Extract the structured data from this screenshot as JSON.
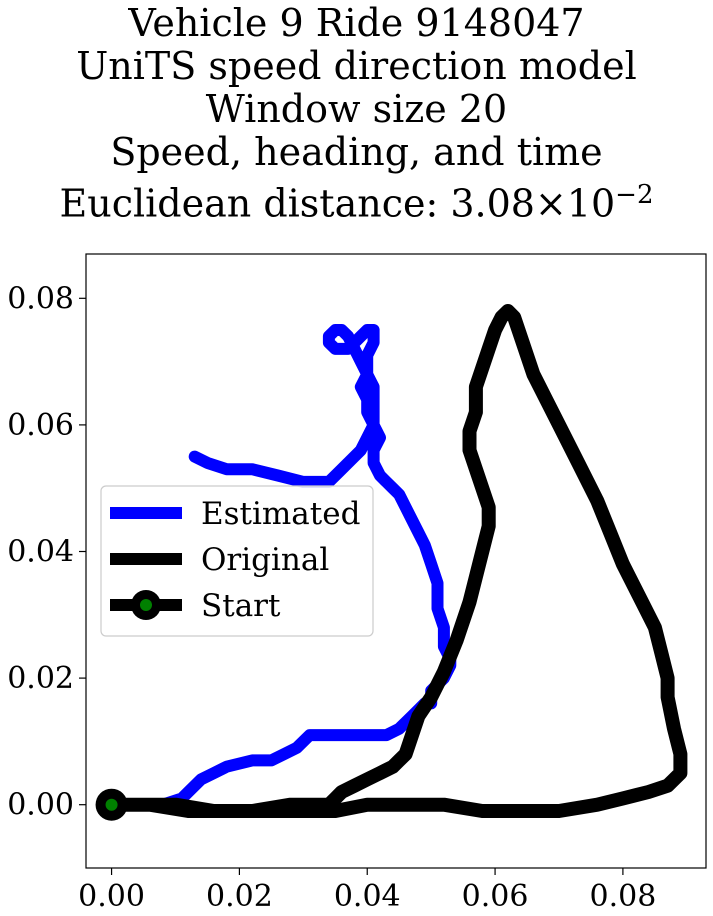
{
  "title_lines": [
    "Vehicle 9 Ride 9148047",
    "UniTS speed direction model",
    "Window size 20",
    "Speed, heading, and time"
  ],
  "title_metric": {
    "prefix": "Euclidean distance: ",
    "mantissa": "3.08",
    "times": "×",
    "base": "10",
    "exponent": "−2"
  },
  "colors": {
    "estimated": "#0000ff",
    "original": "#000000",
    "start_outer": "#000000",
    "start_inner": "#008000"
  },
  "chart_data": {
    "type": "line",
    "title": "Vehicle 9 Ride 9148047 / UniTS speed direction model / Window size 20 / Speed, heading, and time / Euclidean distance: 3.08×10^-2",
    "xlabel": "",
    "ylabel": "",
    "xlim": [
      -0.004,
      0.093
    ],
    "ylim": [
      -0.01,
      0.087
    ],
    "xticks": [
      "0.00",
      "0.02",
      "0.04",
      "0.06",
      "0.08"
    ],
    "yticks": [
      "0.00",
      "0.02",
      "0.04",
      "0.06",
      "0.08"
    ],
    "grid": false,
    "legend_position": "center-left",
    "series": [
      {
        "name": "Estimated",
        "x": [
          0.0,
          0.004,
          0.008,
          0.011,
          0.012,
          0.014,
          0.016,
          0.018,
          0.022,
          0.025,
          0.027,
          0.029,
          0.031,
          0.034,
          0.037,
          0.04,
          0.043,
          0.045,
          0.047,
          0.048,
          0.049,
          0.05,
          0.05,
          0.052,
          0.053,
          0.053,
          0.052,
          0.052,
          0.051,
          0.051,
          0.05,
          0.049,
          0.048,
          0.047,
          0.046,
          0.045,
          0.044,
          0.043,
          0.042,
          0.041,
          0.041,
          0.042,
          0.041,
          0.04,
          0.04,
          0.039,
          0.04,
          0.04,
          0.041,
          0.041,
          0.04,
          0.039,
          0.038,
          0.037,
          0.036,
          0.035,
          0.034,
          0.034,
          0.035,
          0.036,
          0.037,
          0.038,
          0.039,
          0.04,
          0.041,
          0.041,
          0.041,
          0.04,
          0.039,
          0.036,
          0.034,
          0.03,
          0.026,
          0.022,
          0.018,
          0.015,
          0.013
        ],
        "y": [
          0.0,
          0.0,
          0.0,
          0.001,
          0.002,
          0.004,
          0.005,
          0.006,
          0.007,
          0.007,
          0.008,
          0.009,
          0.011,
          0.011,
          0.011,
          0.011,
          0.011,
          0.012,
          0.014,
          0.015,
          0.016,
          0.016,
          0.018,
          0.02,
          0.022,
          0.023,
          0.025,
          0.028,
          0.031,
          0.035,
          0.038,
          0.041,
          0.043,
          0.045,
          0.047,
          0.049,
          0.05,
          0.051,
          0.052,
          0.054,
          0.056,
          0.058,
          0.06,
          0.062,
          0.064,
          0.066,
          0.068,
          0.071,
          0.073,
          0.075,
          0.075,
          0.074,
          0.073,
          0.072,
          0.072,
          0.072,
          0.073,
          0.074,
          0.075,
          0.075,
          0.074,
          0.072,
          0.07,
          0.068,
          0.066,
          0.063,
          0.06,
          0.058,
          0.056,
          0.053,
          0.051,
          0.051,
          0.052,
          0.053,
          0.053,
          0.054,
          0.055
        ]
      },
      {
        "name": "Original",
        "x": [
          0.0,
          0.006,
          0.012,
          0.018,
          0.024,
          0.03,
          0.035,
          0.04,
          0.046,
          0.052,
          0.058,
          0.064,
          0.07,
          0.076,
          0.08,
          0.084,
          0.087,
          0.089,
          0.089,
          0.088,
          0.087,
          0.087,
          0.086,
          0.085,
          0.083,
          0.08,
          0.078,
          0.076,
          0.073,
          0.07,
          0.068,
          0.066,
          0.065,
          0.064,
          0.063,
          0.062,
          0.061,
          0.06,
          0.059,
          0.058,
          0.057,
          0.057,
          0.056,
          0.056,
          0.057,
          0.058,
          0.059,
          0.059,
          0.058,
          0.057,
          0.056,
          0.054,
          0.052,
          0.05,
          0.048,
          0.047,
          0.046,
          0.045,
          0.044,
          0.042,
          0.04,
          0.038,
          0.036,
          0.035,
          0.034,
          0.032,
          0.028,
          0.022,
          0.016,
          0.01,
          0.005,
          0.0
        ],
        "y": [
          0.0,
          0.0,
          -0.001,
          -0.001,
          -0.001,
          -0.001,
          -0.001,
          0.0,
          0.0,
          0.0,
          -0.001,
          -0.001,
          -0.001,
          0.0,
          0.001,
          0.002,
          0.003,
          0.005,
          0.008,
          0.012,
          0.017,
          0.02,
          0.024,
          0.028,
          0.032,
          0.038,
          0.043,
          0.048,
          0.054,
          0.06,
          0.064,
          0.068,
          0.071,
          0.074,
          0.077,
          0.078,
          0.077,
          0.075,
          0.072,
          0.069,
          0.066,
          0.062,
          0.059,
          0.056,
          0.053,
          0.05,
          0.047,
          0.044,
          0.04,
          0.036,
          0.032,
          0.026,
          0.021,
          0.017,
          0.014,
          0.011,
          0.008,
          0.007,
          0.006,
          0.005,
          0.004,
          0.003,
          0.002,
          0.001,
          0.0,
          0.0,
          0.0,
          -0.001,
          -0.001,
          0.0,
          0.0,
          0.0
        ]
      },
      {
        "name": "Start",
        "x": [
          0.0
        ],
        "y": [
          0.0
        ]
      }
    ]
  }
}
